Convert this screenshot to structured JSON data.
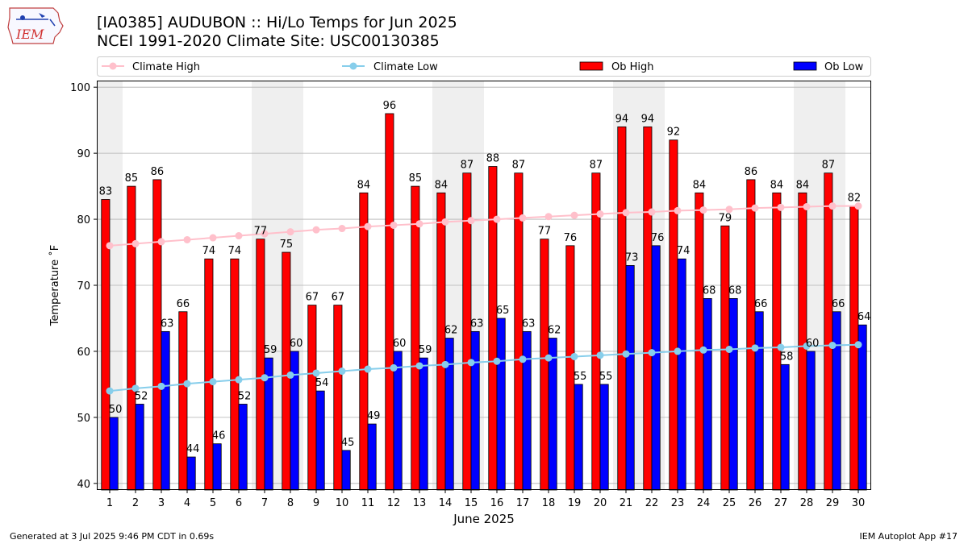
{
  "header": {
    "title": "[IA0385] AUDUBON :: Hi/Lo Temps for Jun 2025",
    "subtitle": "NCEI 1991-2020 Climate Site: USC00130385",
    "logo_text": "IEM"
  },
  "footer": {
    "generated": "Generated at 3 Jul 2025 9:46 PM CDT in 0.69s",
    "app": "IEM Autoplot App #17"
  },
  "colors": {
    "ob_high": "#ff0000",
    "ob_low": "#0000ff",
    "climate_high": "#ffc0cb",
    "climate_low": "#87ceeb",
    "weekend_shade": "#efefef",
    "grid": "#b0b0b0"
  },
  "chart_data": {
    "type": "bar",
    "xlabel": "June 2025",
    "ylabel": "Temperature ˚F",
    "ylim": [
      39,
      101
    ],
    "yticks": [
      40,
      50,
      60,
      70,
      80,
      90,
      100
    ],
    "grid": "horizontal",
    "legend_position": "top",
    "categories": [
      "1",
      "2",
      "3",
      "4",
      "5",
      "6",
      "7",
      "8",
      "9",
      "10",
      "11",
      "12",
      "13",
      "14",
      "15",
      "16",
      "17",
      "18",
      "19",
      "20",
      "21",
      "22",
      "23",
      "24",
      "25",
      "26",
      "27",
      "28",
      "29",
      "30"
    ],
    "shaded_days": [
      1,
      7,
      8,
      14,
      15,
      21,
      22,
      28,
      29
    ],
    "series": [
      {
        "name": "Climate High",
        "kind": "line",
        "color": "#ffc0cb",
        "values": [
          76.0,
          76.3,
          76.6,
          76.9,
          77.2,
          77.5,
          77.8,
          78.1,
          78.4,
          78.6,
          78.9,
          79.1,
          79.3,
          79.6,
          79.8,
          80.0,
          80.2,
          80.4,
          80.6,
          80.8,
          81.0,
          81.1,
          81.3,
          81.4,
          81.5,
          81.7,
          81.8,
          81.9,
          82.0,
          82.0
        ]
      },
      {
        "name": "Climate Low",
        "kind": "line",
        "color": "#87ceeb",
        "values": [
          54.0,
          54.4,
          54.7,
          55.1,
          55.4,
          55.7,
          56.0,
          56.4,
          56.7,
          57.0,
          57.3,
          57.5,
          57.8,
          58.0,
          58.3,
          58.5,
          58.8,
          59.0,
          59.2,
          59.4,
          59.6,
          59.8,
          60.0,
          60.2,
          60.3,
          60.5,
          60.6,
          60.8,
          60.9,
          61.0
        ]
      },
      {
        "name": "Ob High",
        "kind": "bar",
        "color": "#ff0000",
        "values": [
          83,
          85,
          86,
          66,
          74,
          74,
          77,
          75,
          67,
          67,
          84,
          96,
          85,
          84,
          87,
          88,
          87,
          77,
          76,
          87,
          94,
          94,
          92,
          84,
          79,
          86,
          84,
          84,
          87,
          82
        ]
      },
      {
        "name": "Ob Low",
        "kind": "bar",
        "color": "#0000ff",
        "values": [
          50,
          52,
          63,
          44,
          46,
          52,
          59,
          60,
          54,
          45,
          49,
          60,
          59,
          62,
          63,
          65,
          63,
          62,
          55,
          55,
          73,
          76,
          74,
          68,
          68,
          66,
          58,
          60,
          66,
          64
        ]
      }
    ]
  }
}
